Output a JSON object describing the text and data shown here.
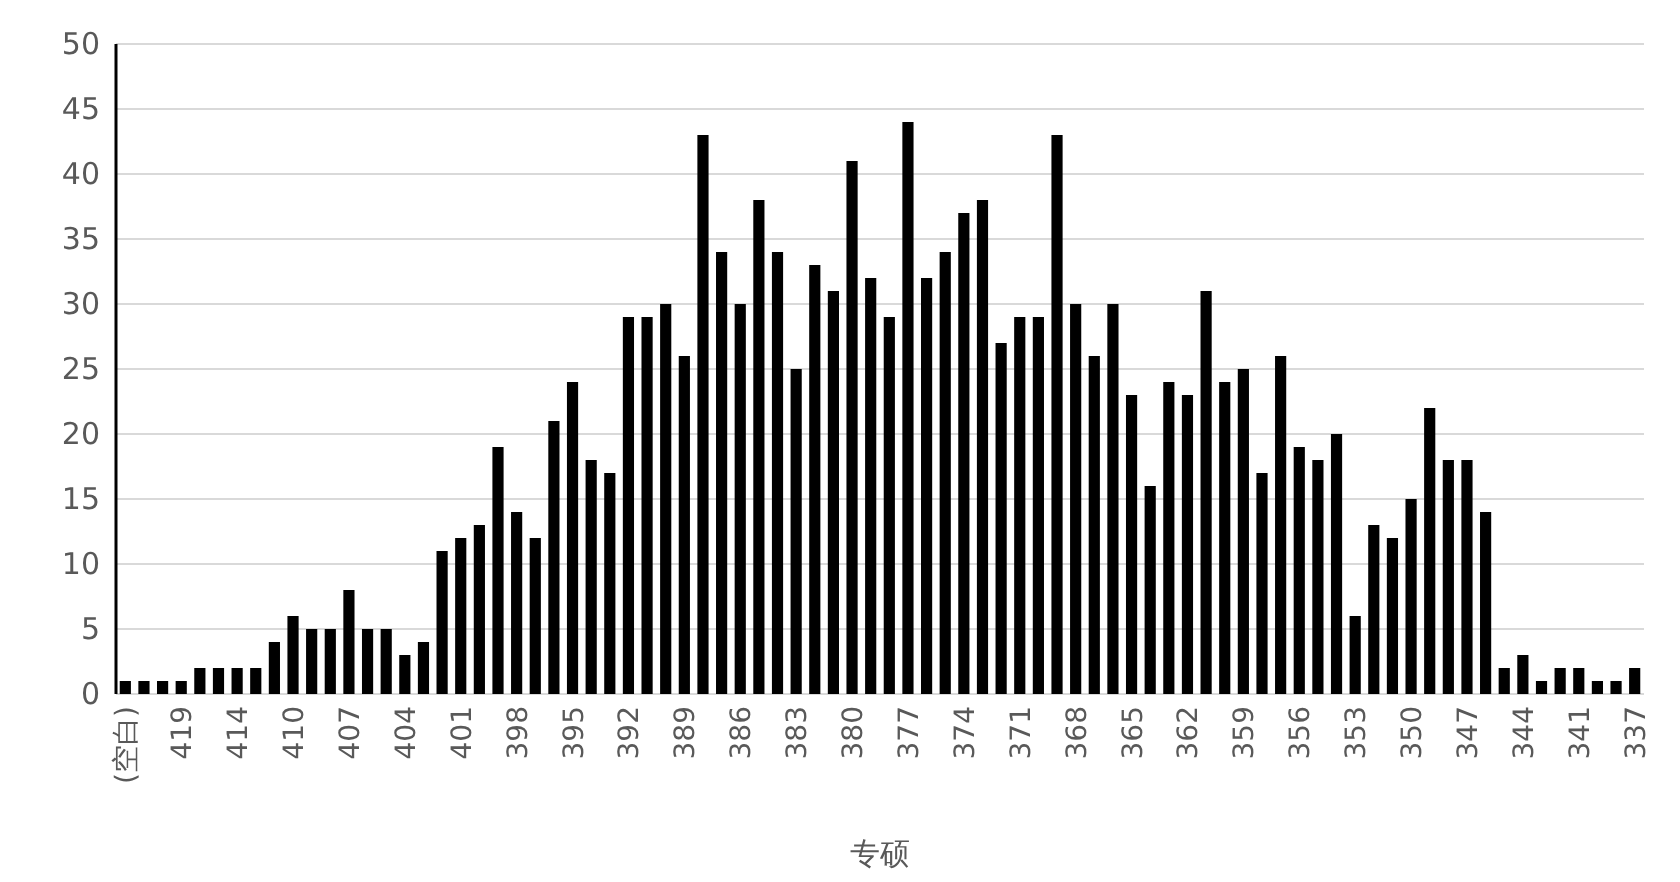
{
  "chart_data": {
    "type": "bar",
    "xlabel": "专硕",
    "categories": [
      "(空白)",
      null,
      null,
      "419",
      null,
      null,
      "414",
      null,
      null,
      "410",
      null,
      null,
      "407",
      null,
      null,
      "404",
      null,
      null,
      "401",
      null,
      null,
      "398",
      null,
      null,
      "395",
      null,
      null,
      "392",
      null,
      null,
      "389",
      null,
      null,
      "386",
      null,
      null,
      "383",
      null,
      null,
      "380",
      null,
      null,
      "377",
      null,
      null,
      "374",
      null,
      null,
      "371",
      null,
      null,
      "368",
      null,
      null,
      "365",
      null,
      null,
      "362",
      null,
      null,
      "359",
      null,
      null,
      "356",
      null,
      null,
      "353",
      null,
      null,
      "350",
      null,
      null,
      "347",
      null,
      null,
      "344",
      null,
      null,
      "341",
      null,
      null,
      "337"
    ],
    "values": [
      1,
      1,
      1,
      1,
      2,
      2,
      2,
      2,
      4,
      6,
      5,
      5,
      8,
      5,
      5,
      3,
      4,
      11,
      12,
      13,
      19,
      14,
      12,
      21,
      24,
      18,
      17,
      29,
      29,
      30,
      26,
      43,
      34,
      30,
      38,
      34,
      25,
      33,
      31,
      41,
      32,
      29,
      44,
      32,
      34,
      37,
      38,
      27,
      29,
      29,
      43,
      30,
      26,
      30,
      23,
      16,
      24,
      23,
      31,
      24,
      25,
      17,
      26,
      19,
      18,
      20,
      6,
      13,
      12,
      15,
      22,
      18,
      18,
      14,
      2,
      3,
      1,
      2,
      2,
      1,
      1,
      2
    ],
    "color": "#000000",
    "ylim": [
      0,
      50
    ],
    "yticks": [
      0,
      5,
      10,
      15,
      20,
      25,
      30,
      35,
      40,
      45,
      50
    ],
    "grid": "y"
  }
}
